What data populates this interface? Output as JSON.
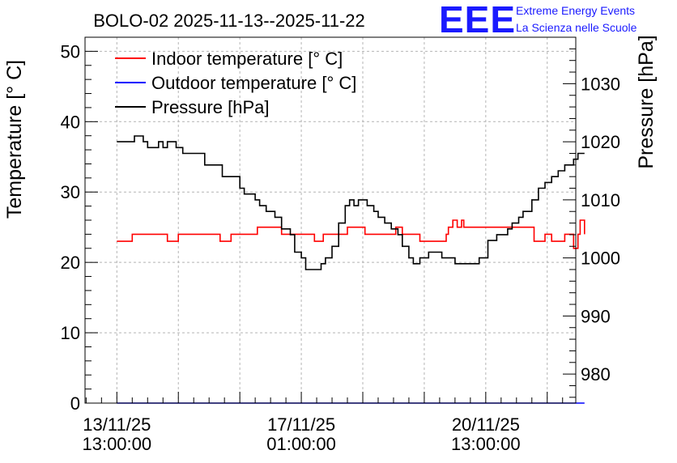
{
  "header": {
    "title": "BOLO-02 2025-11-13--2025-11-22",
    "logo_text": "EEE",
    "org_line1": "Extreme Energy Events",
    "org_line2": "La Scienza nelle Scuole"
  },
  "colors": {
    "indoor": "#ff0000",
    "outdoor": "#0000ff",
    "pressure": "#000000",
    "grid": "#b4b4b4",
    "logo": "#1a1aff"
  },
  "chart_data": {
    "type": "line",
    "title": "BOLO-02 2025-11-13--2025-11-22",
    "xlabel": "",
    "ylabel_left": "Temperature [° C]",
    "ylabel_right": "Pressure [hPa]",
    "left_axis": {
      "range": [
        0,
        52
      ],
      "ticks": [
        0,
        10,
        20,
        30,
        40,
        50
      ]
    },
    "right_axis": {
      "range": [
        975,
        1038
      ],
      "ticks": [
        980,
        990,
        1000,
        1010,
        1020,
        1030
      ]
    },
    "x_axis": {
      "unit": "hours since 2025-11-13 00:00",
      "range": [
        -1.5,
        222
      ],
      "ticks": [
        {
          "x": 13,
          "line1": "13/11/25",
          "line2": "13:00:00"
        },
        {
          "x": 97,
          "line1": "17/11/25",
          "line2": "01:00:00"
        },
        {
          "x": 181,
          "line1": "20/11/25",
          "line2": "13:00:00"
        }
      ],
      "gridlines": [
        13,
        41,
        69,
        97,
        125,
        153,
        181,
        209
      ],
      "minor_step": 7
    },
    "legend": {
      "position": "top-left",
      "entries": [
        {
          "key": "indoor",
          "label": "Indoor temperature [° C]"
        },
        {
          "key": "outdoor",
          "label": "Outdoor temperature [° C]"
        },
        {
          "key": "pressure",
          "label": "Pressure [hPa]"
        }
      ]
    },
    "series": [
      {
        "name": "Indoor temperature [° C]",
        "axis": "left",
        "x": [
          13,
          18,
          20,
          33,
          36,
          41,
          57,
          60,
          65,
          68,
          77,
          81,
          88,
          103,
          107,
          118,
          123,
          126,
          130,
          140,
          143,
          148,
          151,
          163,
          164,
          166,
          168,
          170,
          171,
          178,
          200,
          203,
          208,
          211,
          217,
          221,
          223,
          224,
          225,
          226
        ],
        "values": [
          23,
          23,
          24,
          24,
          23,
          24,
          24,
          23,
          24,
          24,
          25,
          25,
          24,
          23,
          24,
          25,
          25,
          24,
          24,
          25,
          24,
          24,
          23,
          24,
          25,
          26,
          25,
          26,
          25,
          25,
          25,
          23,
          24,
          23,
          24,
          22,
          24,
          26,
          26,
          24
        ]
      },
      {
        "name": "Outdoor temperature [° C]",
        "axis": "left",
        "x": [
          13,
          226
        ],
        "values": [
          0,
          0
        ]
      },
      {
        "name": "Pressure [hPa]",
        "axis": "right",
        "x": [
          13,
          19,
          21,
          23,
          25,
          27,
          32,
          34,
          36,
          38,
          40,
          43,
          46,
          50,
          53,
          58,
          61,
          64,
          69,
          71,
          74,
          76,
          78,
          81,
          85,
          88,
          92,
          94,
          97,
          99,
          101,
          104,
          106,
          108,
          111,
          114,
          117,
          119,
          121,
          123,
          125,
          127,
          130,
          132,
          135,
          138,
          141,
          143,
          146,
          148,
          151,
          155,
          158,
          161,
          164,
          167,
          170,
          174,
          178,
          182,
          186,
          188,
          191,
          193,
          196,
          198,
          202,
          205,
          208,
          211,
          214,
          217,
          219,
          221,
          223,
          225,
          226
        ],
        "values": [
          1020,
          1020,
          1021,
          1021,
          1020,
          1019,
          1020,
          1019,
          1020,
          1020,
          1019,
          1018,
          1018,
          1018,
          1016,
          1016,
          1014,
          1014,
          1012,
          1011,
          1011,
          1010,
          1009,
          1008,
          1007,
          1005,
          1004,
          1001,
          1000,
          998,
          998,
          998,
          999,
          1000,
          1002,
          1006,
          1009,
          1010,
          1009,
          1010,
          1010,
          1009,
          1008,
          1007,
          1006,
          1005,
          1004,
          1002,
          1000,
          999,
          1000,
          1001,
          1001,
          1000,
          1000,
          999,
          999,
          999,
          1000,
          1003,
          1004,
          1004,
          1005,
          1006,
          1007,
          1008,
          1010,
          1012,
          1013,
          1014,
          1015,
          1016,
          1016,
          1017,
          1018,
          1018,
          1018
        ]
      }
    ]
  }
}
